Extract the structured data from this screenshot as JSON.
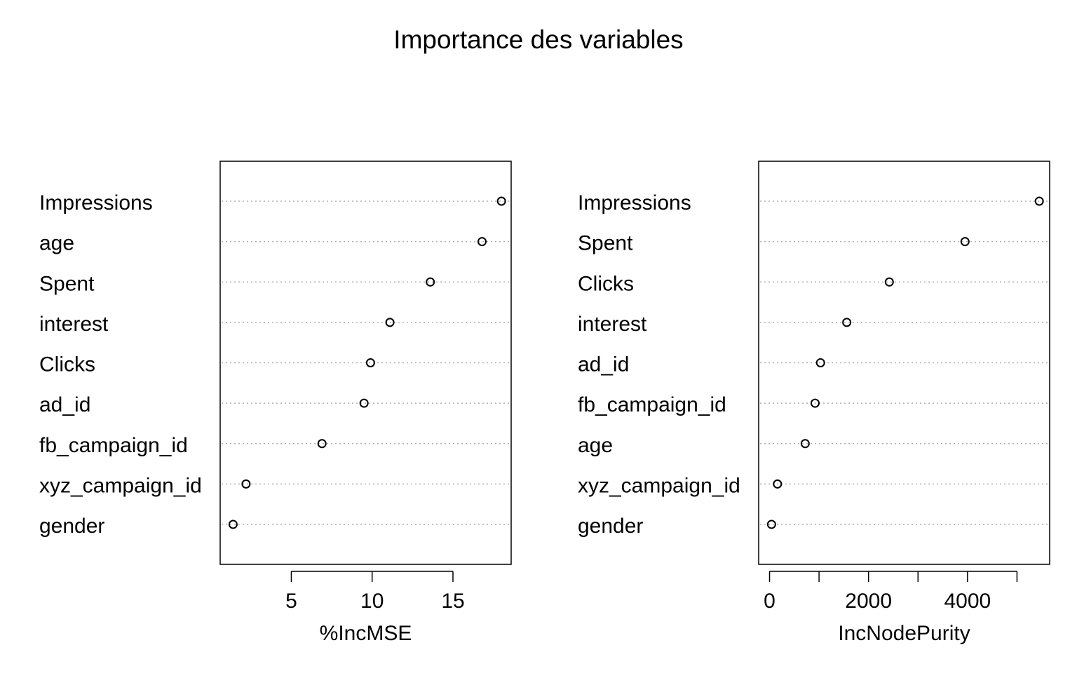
{
  "title": "Importance des variables",
  "chart_data": [
    {
      "type": "scatter",
      "xlabel": "%IncMSE",
      "xlim": [
        0.6,
        18.6
      ],
      "xticks": [
        5,
        10,
        15
      ],
      "grid": "horizontal dotted",
      "categories": [
        "Impressions",
        "age",
        "Spent",
        "interest",
        "Clicks",
        "ad_id",
        "fb_campaign_id",
        "xyz_campaign_id",
        "gender"
      ],
      "values": [
        18.0,
        16.8,
        13.6,
        11.1,
        9.9,
        9.5,
        6.9,
        2.2,
        1.4
      ]
    },
    {
      "type": "scatter",
      "xlabel": "IncNodePurity",
      "xlim": [
        -220,
        5660
      ],
      "xticks": [
        0,
        1000,
        2000,
        3000,
        4000,
        5000
      ],
      "xticklabels": [
        "0",
        "",
        "2000",
        "",
        "4000",
        ""
      ],
      "grid": "horizontal dotted",
      "categories": [
        "Impressions",
        "Spent",
        "Clicks",
        "interest",
        "ad_id",
        "fb_campaign_id",
        "age",
        "xyz_campaign_id",
        "gender"
      ],
      "values": [
        5450,
        3950,
        2420,
        1560,
        1030,
        920,
        720,
        160,
        40
      ]
    }
  ]
}
